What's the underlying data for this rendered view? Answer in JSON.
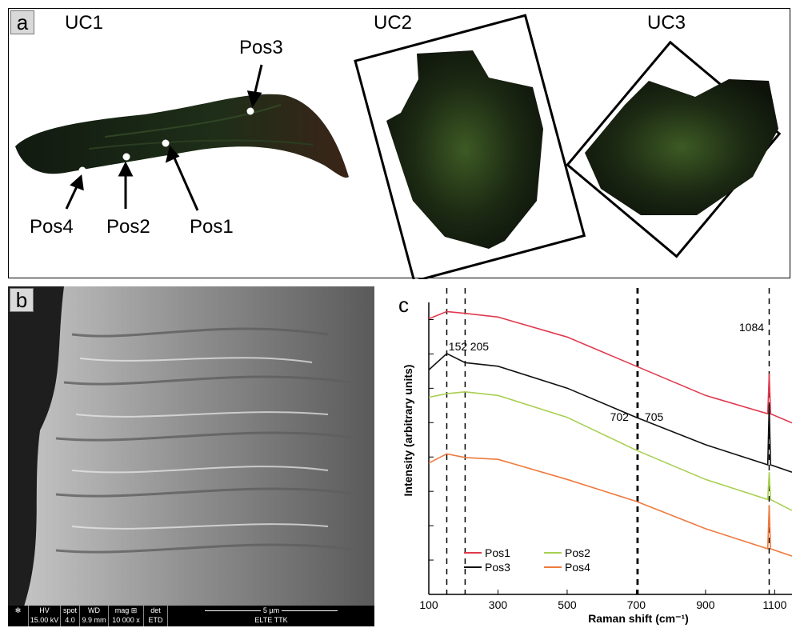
{
  "panel_a": {
    "tag": "a",
    "samples": {
      "uc1": "UC1",
      "uc2": "UC2",
      "uc3": "UC3"
    },
    "positions": {
      "pos1": "Pos1",
      "pos2": "Pos2",
      "pos3": "Pos3",
      "pos4": "Pos4"
    }
  },
  "panel_b": {
    "tag": "b",
    "databar": {
      "hv_label": "HV",
      "hv_value": "15.00 kV",
      "spot_label": "spot",
      "spot_value": "4.0",
      "wd_label": "WD",
      "wd_value": "9.9 mm",
      "mag_label": "mag ⊞",
      "mag_value": "10 000 x",
      "det_label": "det",
      "det_value": "ETD",
      "scale_label": "5 µm",
      "institution": "ELTE TTK"
    }
  },
  "panel_c": {
    "tag": "c",
    "colors": {
      "Pos1": "#e03a4e",
      "Pos2": "#a8cf52",
      "Pos3": "#111111",
      "Pos4": "#ee7a3e"
    }
  },
  "chart_data": {
    "type": "line",
    "xlabel": "Raman shift (cm⁻¹)",
    "ylabel": "Intensity (arbitrary units)",
    "xlim": [
      100,
      1150
    ],
    "x_ticks": [
      "100",
      "300",
      "500",
      "700",
      "900",
      "1100"
    ],
    "y_ticks_count": 8,
    "peak_markers": [
      152,
      205,
      702,
      705,
      1084
    ],
    "peak_labels": [
      "152",
      "205",
      "702",
      "705",
      "1084"
    ],
    "legend": [
      "Pos1",
      "Pos2",
      "Pos3",
      "Pos4"
    ],
    "series": [
      {
        "name": "Pos1",
        "color": "#e03a4e",
        "x": [
          100,
          152,
          205,
          300,
          500,
          700,
          900,
          1080,
          1084,
          1088,
          1150
        ],
        "y": [
          7.55,
          7.75,
          7.7,
          7.6,
          7.05,
          6.25,
          5.45,
          4.95,
          6.05,
          4.95,
          4.7
        ]
      },
      {
        "name": "Pos3",
        "color": "#111111",
        "x": [
          100,
          152,
          205,
          300,
          500,
          700,
          900,
          1080,
          1084,
          1088,
          1150
        ],
        "y": [
          6.15,
          6.6,
          6.35,
          6.25,
          5.65,
          4.85,
          4.1,
          3.55,
          5.2,
          3.55,
          3.35
        ]
      },
      {
        "name": "Pos2",
        "color": "#a8cf52",
        "x": [
          100,
          152,
          205,
          300,
          500,
          700,
          900,
          1080,
          1084,
          1088,
          1150
        ],
        "y": [
          5.4,
          5.5,
          5.55,
          5.45,
          4.85,
          3.95,
          3.15,
          2.6,
          3.35,
          2.6,
          2.3
        ]
      },
      {
        "name": "Pos4",
        "color": "#ee7a3e",
        "x": [
          100,
          152,
          205,
          300,
          500,
          700,
          900,
          1080,
          1084,
          1088,
          1150
        ],
        "y": [
          3.6,
          3.85,
          3.75,
          3.7,
          3.15,
          2.55,
          1.8,
          1.25,
          2.45,
          1.25,
          1.05
        ]
      }
    ]
  }
}
